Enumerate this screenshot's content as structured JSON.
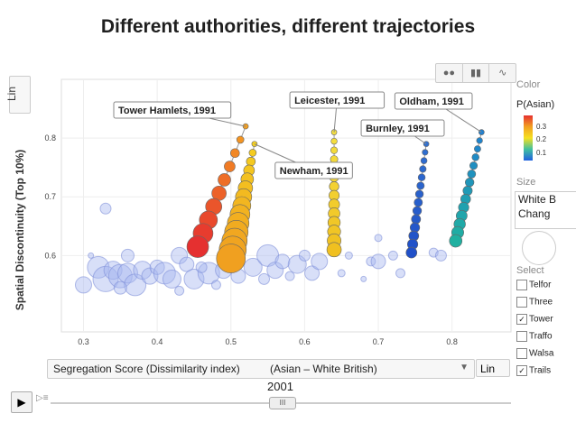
{
  "title": "Different authorities, different trajectories",
  "y_scale_button": "Lin",
  "x_scale_button": "Lin",
  "x_axis_select": {
    "label": "Segregation Score (Dissimilarity index)",
    "suffix": "(Asian – White British)",
    "arrow": "▼"
  },
  "view_toolbar": [
    "bubbles",
    "bars",
    "lines"
  ],
  "side_panel": {
    "color_label": "Color",
    "color_value": "P(Asian)",
    "legend_ticks": [
      "0.3",
      "0.2",
      "0.1"
    ],
    "size_label": "Size",
    "size_value": [
      "White B",
      "Chang"
    ],
    "select_label": "Select",
    "select_items": [
      {
        "label": "Telfor",
        "checked": false
      },
      {
        "label": "Three",
        "checked": false
      },
      {
        "label": "Tower",
        "checked": true
      },
      {
        "label": "Traffo",
        "checked": false
      },
      {
        "label": "Walsa",
        "checked": false
      },
      {
        "label": "Trails",
        "checked": true
      }
    ],
    "checkmark": "✓"
  },
  "player": {
    "year": "2001",
    "play_icon": "▶",
    "thumb": "III"
  },
  "colors": {
    "tower": "#e53030",
    "newham": "#f5c020",
    "leicester": "#f0d020",
    "burnley": "#2f6fd8",
    "oldham": "#20b0b0",
    "bg": "#a8b8f0"
  },
  "chart_data": {
    "type": "scatter",
    "title": "Different authorities, different trajectories",
    "xlabel": "Segregation Score (Dissimilarity index) (Asian – White British)",
    "ylabel": "Spatial Discontinuity (Top 10%)",
    "xlim": [
      0.27,
      0.88
    ],
    "ylim": [
      0.47,
      0.9
    ],
    "xticks": [
      0.3,
      0.4,
      0.5,
      0.6,
      0.7,
      0.8
    ],
    "yticks": [
      0.6,
      0.7,
      0.8
    ],
    "xtick_labels": [
      "0.3",
      "0.4",
      "0.5",
      "0.6",
      "0.7",
      "0.8"
    ],
    "ytick_labels": [
      "0.6",
      "0.7",
      "0.8"
    ],
    "series": [
      {
        "name": "Tower Hamlets",
        "label": "Tower Hamlets, 1991",
        "start": [
          0.52,
          0.82
        ],
        "end": [
          0.455,
          0.615
        ],
        "n": 10,
        "r_start": 3,
        "r_end": 12,
        "c_start": "#f5a020",
        "c_end": "#e53030"
      },
      {
        "name": "Newham",
        "label": "Newham, 1991",
        "start": [
          0.532,
          0.79
        ],
        "end": [
          0.5,
          0.595
        ],
        "n": 14,
        "r_start": 3,
        "r_end": 16,
        "c_start": "#f5d020",
        "c_end": "#f0a020"
      },
      {
        "name": "Leicester",
        "label": "Leicester, 1991",
        "start": [
          0.64,
          0.81
        ],
        "end": [
          0.64,
          0.61
        ],
        "n": 14,
        "r_start": 3,
        "r_end": 8,
        "c_start": "#f5e040",
        "c_end": "#f0c020"
      },
      {
        "name": "Burnley",
        "label": "Burnley, 1991",
        "start": [
          0.765,
          0.79
        ],
        "end": [
          0.745,
          0.605
        ],
        "n": 14,
        "r_start": 3,
        "r_end": 6,
        "c_start": "#3070d0",
        "c_end": "#2050c8"
      },
      {
        "name": "Oldham",
        "label": "Oldham, 1991",
        "start": [
          0.84,
          0.81
        ],
        "end": [
          0.805,
          0.625
        ],
        "n": 14,
        "r_start": 3,
        "r_end": 7,
        "c_start": "#2080d0",
        "c_end": "#20b0a0"
      }
    ],
    "background_points": [
      [
        0.3,
        0.55,
        9
      ],
      [
        0.32,
        0.58,
        12
      ],
      [
        0.33,
        0.56,
        14
      ],
      [
        0.34,
        0.575,
        10
      ],
      [
        0.35,
        0.565,
        13
      ],
      [
        0.36,
        0.57,
        11
      ],
      [
        0.37,
        0.55,
        12
      ],
      [
        0.38,
        0.575,
        10
      ],
      [
        0.39,
        0.565,
        9
      ],
      [
        0.4,
        0.58,
        8
      ],
      [
        0.41,
        0.57,
        12
      ],
      [
        0.42,
        0.56,
        10
      ],
      [
        0.43,
        0.6,
        9
      ],
      [
        0.44,
        0.585,
        8
      ],
      [
        0.45,
        0.56,
        11
      ],
      [
        0.47,
        0.57,
        12
      ],
      [
        0.49,
        0.575,
        9
      ],
      [
        0.51,
        0.565,
        8
      ],
      [
        0.53,
        0.58,
        10
      ],
      [
        0.55,
        0.6,
        12
      ],
      [
        0.56,
        0.575,
        9
      ],
      [
        0.57,
        0.59,
        8
      ],
      [
        0.59,
        0.585,
        10
      ],
      [
        0.61,
        0.57,
        8
      ],
      [
        0.62,
        0.59,
        9
      ],
      [
        0.33,
        0.68,
        6
      ],
      [
        0.36,
        0.6,
        7
      ],
      [
        0.46,
        0.58,
        6
      ],
      [
        0.5,
        0.59,
        7
      ],
      [
        0.545,
        0.56,
        6
      ],
      [
        0.58,
        0.565,
        5
      ],
      [
        0.6,
        0.6,
        6
      ],
      [
        0.66,
        0.6,
        4
      ],
      [
        0.69,
        0.59,
        5
      ],
      [
        0.7,
        0.59,
        8
      ],
      [
        0.72,
        0.6,
        5
      ],
      [
        0.73,
        0.57,
        5
      ],
      [
        0.775,
        0.605,
        5
      ],
      [
        0.785,
        0.6,
        6
      ],
      [
        0.7,
        0.63,
        4
      ],
      [
        0.65,
        0.57,
        4
      ],
      [
        0.31,
        0.6,
        3
      ],
      [
        0.68,
        0.56,
        3
      ],
      [
        0.43,
        0.54,
        5
      ],
      [
        0.35,
        0.545,
        7
      ],
      [
        0.48,
        0.55,
        5
      ]
    ]
  }
}
